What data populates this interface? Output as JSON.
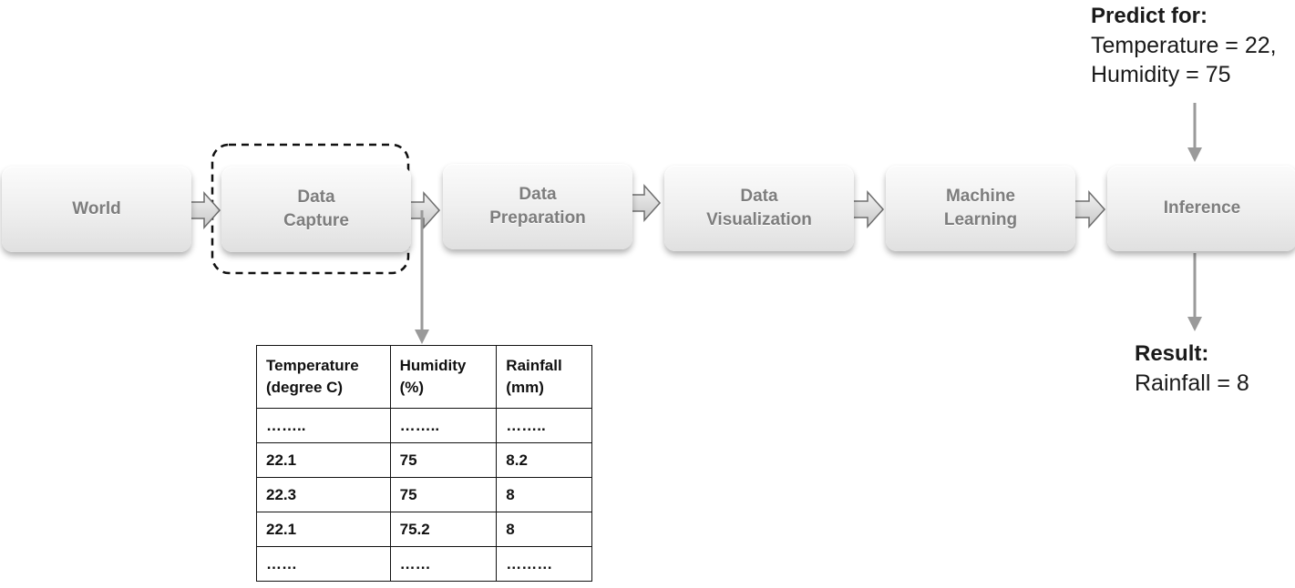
{
  "stages": [
    {
      "label": "World"
    },
    {
      "label": "Data\nCapture"
    },
    {
      "label": "Data\nPreparation"
    },
    {
      "label": "Data\nVisualization"
    },
    {
      "label": "Machine\nLearning"
    },
    {
      "label": "Inference"
    }
  ],
  "predict": {
    "title": "Predict for:",
    "line1": "Temperature = 22,",
    "line2": "Humidity = 75"
  },
  "result": {
    "title": "Result:",
    "line1": "Rainfall = 8"
  },
  "table": {
    "headers": [
      "Temperature\n(degree C)",
      "Humidity\n(%)",
      "Rainfall\n(mm)"
    ],
    "rows": [
      [
        "……..",
        "……..",
        "…….."
      ],
      [
        "22.1",
        "75",
        "8.2"
      ],
      [
        "22.3",
        "75",
        "8"
      ],
      [
        "22.1",
        "75.2",
        "8"
      ],
      [
        "……",
        "……",
        "………"
      ]
    ]
  }
}
